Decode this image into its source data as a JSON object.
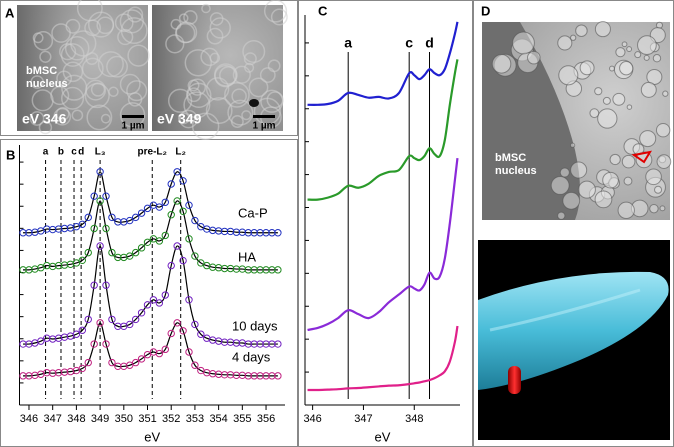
{
  "panels": {
    "A": {
      "letter": "A",
      "nucleus": [
        "bMSC",
        "nucleus"
      ],
      "left_label": "eV 346",
      "right_label": "eV 349",
      "scale": [
        "1 µm",
        "1 µm"
      ]
    },
    "D": {
      "letter": "D",
      "nucleus": [
        "bMSC",
        "nucleus"
      ]
    }
  },
  "chart_data": [
    {
      "type": "line",
      "panel_label": "B",
      "x_label": "eV",
      "xlim": [
        345.6,
        356.8
      ],
      "xticks": [
        346,
        347,
        348,
        349,
        350,
        351,
        352,
        353,
        354,
        355,
        356
      ],
      "ylim": [
        0,
        10
      ],
      "annotations": [
        {
          "label": "a",
          "x": 346.7
        },
        {
          "label": "b",
          "x": 347.35
        },
        {
          "label": "c",
          "x": 347.9
        },
        {
          "label": "d",
          "x": 348.2
        },
        {
          "label": "L₃",
          "x": 349.0
        },
        {
          "label": "pre-L₂",
          "x": 351.2
        },
        {
          "label": "L₂",
          "x": 352.4
        }
      ],
      "x": [
        345.75,
        346,
        346.25,
        346.5,
        346.75,
        347,
        347.25,
        347.5,
        347.75,
        348,
        348.25,
        348.5,
        348.75,
        349,
        349.25,
        349.5,
        349.75,
        350,
        350.25,
        350.5,
        350.75,
        351,
        351.25,
        351.5,
        351.75,
        352,
        352.25,
        352.5,
        352.75,
        353,
        353.25,
        353.5,
        353.75,
        354,
        354.25,
        354.5,
        354.75,
        355,
        355.25,
        355.5,
        355.75,
        356,
        356.25,
        356.5
      ],
      "series": [
        {
          "name": "Ca-P",
          "color": "#2030c0",
          "values": [
            6.5,
            6.5,
            6.52,
            6.57,
            6.64,
            6.62,
            6.64,
            6.66,
            6.68,
            6.73,
            6.82,
            7.08,
            7.88,
            8.8,
            7.88,
            7.08,
            6.91,
            6.91,
            6.96,
            7.08,
            7.24,
            7.42,
            7.54,
            7.47,
            7.65,
            8.34,
            8.8,
            8.46,
            7.54,
            6.96,
            6.73,
            6.64,
            6.59,
            6.57,
            6.55,
            6.55,
            6.52,
            6.52,
            6.5,
            6.5,
            6.5,
            6.5,
            6.5,
            6.5
          ]
        },
        {
          "name": "HA",
          "color": "#208a20",
          "values": [
            5.1,
            5.1,
            5.13,
            5.18,
            5.26,
            5.23,
            5.26,
            5.28,
            5.31,
            5.36,
            5.46,
            5.75,
            6.66,
            7.7,
            6.66,
            5.75,
            5.57,
            5.57,
            5.62,
            5.75,
            5.93,
            6.14,
            6.27,
            6.19,
            6.4,
            7.18,
            7.7,
            7.31,
            6.27,
            5.62,
            5.36,
            5.26,
            5.2,
            5.18,
            5.15,
            5.15,
            5.13,
            5.13,
            5.1,
            5.1,
            5.1,
            5.1,
            5.1,
            5.1
          ]
        },
        {
          "name": "10 days",
          "color": "#7020c0",
          "values": [
            2.3,
            2.3,
            2.34,
            2.41,
            2.52,
            2.49,
            2.52,
            2.56,
            2.6,
            2.67,
            2.82,
            3.23,
            4.52,
            6.0,
            4.52,
            3.23,
            2.97,
            2.97,
            3.04,
            3.23,
            3.48,
            3.78,
            3.97,
            3.85,
            4.15,
            5.26,
            6.0,
            5.45,
            3.97,
            3.04,
            2.67,
            2.52,
            2.45,
            2.41,
            2.37,
            2.37,
            2.34,
            2.34,
            2.3,
            2.3,
            2.3,
            2.3,
            2.3,
            2.3
          ]
        },
        {
          "name": "4 days",
          "color": "#c02080",
          "values": [
            1.1,
            1.1,
            1.12,
            1.16,
            1.22,
            1.2,
            1.22,
            1.24,
            1.26,
            1.3,
            1.38,
            1.6,
            2.3,
            3.1,
            2.3,
            1.6,
            1.46,
            1.46,
            1.5,
            1.6,
            1.74,
            1.9,
            2.0,
            1.94,
            2.1,
            2.7,
            3.1,
            2.8,
            2.0,
            1.5,
            1.3,
            1.22,
            1.18,
            1.16,
            1.14,
            1.14,
            1.12,
            1.12,
            1.1,
            1.1,
            1.1,
            1.1,
            1.1,
            1.1
          ]
        }
      ]
    },
    {
      "type": "line",
      "panel_label": "C",
      "x_label": "eV",
      "xlim": [
        345.85,
        348.9
      ],
      "xticks": [
        346,
        347,
        348
      ],
      "ylim": [
        0,
        10
      ],
      "annotations": [
        {
          "label": "a",
          "x": 346.7
        },
        {
          "label": "c",
          "x": 347.9
        },
        {
          "label": "d",
          "x": 348.3
        }
      ],
      "x": [
        345.9,
        346.1,
        346.3,
        346.5,
        346.7,
        346.9,
        347.1,
        347.3,
        347.5,
        347.7,
        347.9,
        348.0,
        348.1,
        348.2,
        348.3,
        348.4,
        348.5,
        348.6,
        348.7,
        348.8,
        348.85
      ],
      "series": [
        {
          "color": "#2020d0",
          "values": [
            7.6,
            7.6,
            7.62,
            7.7,
            7.9,
            7.85,
            7.78,
            7.8,
            7.76,
            7.9,
            8.4,
            8.35,
            8.25,
            8.35,
            8.5,
            8.4,
            8.35,
            8.5,
            8.9,
            9.4,
            9.7
          ]
        },
        {
          "color": "#2a9a2a",
          "values": [
            5.2,
            5.2,
            5.25,
            5.35,
            5.55,
            5.5,
            5.6,
            5.8,
            5.9,
            5.95,
            6.3,
            6.25,
            6.2,
            6.3,
            6.5,
            6.35,
            6.3,
            6.7,
            7.6,
            8.4,
            8.75
          ]
        },
        {
          "color": "#8a2ad8",
          "values": [
            1.9,
            1.95,
            2.05,
            2.2,
            2.4,
            2.3,
            2.2,
            2.35,
            2.6,
            2.8,
            3.0,
            2.95,
            2.9,
            3.05,
            3.35,
            3.2,
            3.25,
            3.7,
            4.6,
            5.7,
            6.25
          ]
        },
        {
          "color": "#e0208a",
          "values": [
            0.38,
            0.38,
            0.39,
            0.4,
            0.42,
            0.43,
            0.45,
            0.47,
            0.49,
            0.5,
            0.53,
            0.55,
            0.57,
            0.6,
            0.63,
            0.68,
            0.75,
            0.85,
            1.1,
            1.6,
            2.0
          ]
        }
      ]
    }
  ]
}
